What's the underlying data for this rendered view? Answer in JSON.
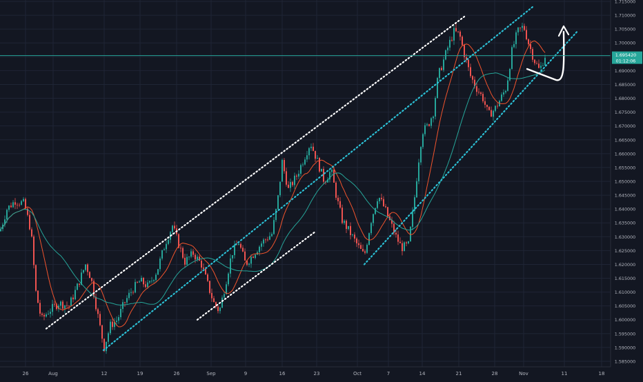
{
  "chart_data": {
    "type": "candlestick",
    "title": "",
    "grid": true,
    "colors": {
      "background": "#131722",
      "grid": "#1f2535",
      "axis_text": "#b2b5be",
      "price_line": "#26a69a",
      "price_tag": "#26a69a",
      "candle_up": "#26a69a",
      "candle_down": "#ef5350",
      "ma_fast": "#f2542d",
      "ma_slow": "#26a69a",
      "channel_upper": "#ffffff",
      "channel_mid": "#2cc1d6",
      "arrow": "#ffffff"
    },
    "ylim": [
      1.583,
      1.7155
    ],
    "y_ticks": [
      "1.715000",
      "1.710000",
      "1.705000",
      "1.700000",
      "1.695000",
      "1.690000",
      "1.685000",
      "1.680000",
      "1.675000",
      "1.670000",
      "1.665000",
      "1.660000",
      "1.655000",
      "1.650000",
      "1.645000",
      "1.640000",
      "1.635000",
      "1.630000",
      "1.625000",
      "1.620000",
      "1.615000",
      "1.610000",
      "1.605000",
      "1.600000",
      "1.595000",
      "1.590000",
      "1.585000"
    ],
    "x_ticks": [
      "26",
      "Aug",
      "12",
      "19",
      "26",
      "Sep",
      "9",
      "16",
      "23",
      "Oct",
      "7",
      "14",
      "21",
      "28",
      "Nov",
      "11",
      "18"
    ],
    "current_price": {
      "value": "1.695420",
      "countdown": "01:12:06"
    },
    "candles_summary": {
      "series_name": "",
      "description_points": [
        {
          "x": "26",
          "close": 1.64
        },
        {
          "x": "Aug",
          "close": 1.603
        },
        {
          "x": "12",
          "close": 1.592
        },
        {
          "x": "19",
          "close": 1.608
        },
        {
          "x": "26",
          "close": 1.632
        },
        {
          "x": "Sep",
          "close": 1.607
        },
        {
          "x": "9",
          "close": 1.625
        },
        {
          "x": "16",
          "close": 1.655
        },
        {
          "x": "23",
          "close": 1.652
        },
        {
          "x": "Oct",
          "close": 1.623
        },
        {
          "x": "7",
          "close": 1.637
        },
        {
          "x": "14",
          "close": 1.662
        },
        {
          "x": "21",
          "close": 1.7
        },
        {
          "x": "28",
          "close": 1.676
        },
        {
          "x": "Nov",
          "close": 1.705
        },
        {
          "x": "Nov+4",
          "close": 1.6954
        }
      ]
    }
  }
}
